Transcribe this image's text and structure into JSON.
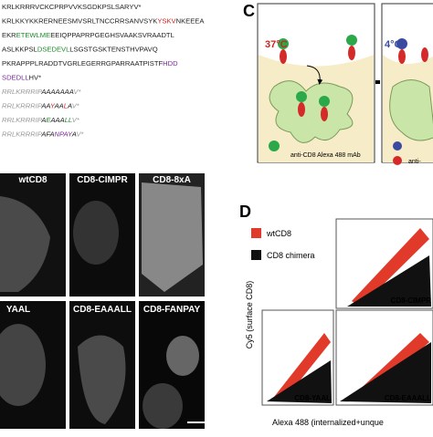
{
  "sequences": [
    [
      {
        "text": "KRLKRRRVCKCPRPVVKSGDKPSLSARYV*",
        "color": "#222"
      }
    ],
    [
      {
        "text": "KRLKKYKKRERNEESMVSRLTNCCRRSANVSYK",
        "color": "#222"
      },
      {
        "text": "YSKV",
        "color": "#d02020"
      },
      {
        "text": "NKEEEA",
        "color": "#222"
      }
    ],
    [
      {
        "text": "EKR",
        "color": "#222"
      },
      {
        "text": "ETEWLME",
        "color": "#1a8a2a"
      },
      {
        "text": "EEIQPPAPRPGEGHSVAAKSVRAADTL",
        "color": "#222"
      }
    ],
    [
      {
        "text": "ASLKKPSL",
        "color": "#222"
      },
      {
        "text": "DSEDEVL",
        "color": "#1a8a2a"
      },
      {
        "text": "LSGSTGSKTENSTHVPAVQ",
        "color": "#222"
      }
    ],
    [
      {
        "text": "PKRAPPPLRADDTVGRLEGERRGPARRAATPISTF",
        "color": "#222"
      },
      {
        "text": "HDD",
        "color": "#7a2a9a"
      }
    ],
    [
      {
        "text": "SDEDLL",
        "color": "#7a2a9a"
      },
      {
        "text": "HV*",
        "color": "#222"
      }
    ],
    [
      {
        "text": "RRLKRRRIP",
        "color": "#999"
      },
      {
        "text": "AAAAAAA",
        "color": "#222"
      },
      {
        "text": "V*",
        "color": "#999"
      }
    ],
    [
      {
        "text": "RRLKRRRIP",
        "color": "#999"
      },
      {
        "text": "AA",
        "color": "#222"
      },
      {
        "text": "Y",
        "color": "#d02020"
      },
      {
        "text": "AA",
        "color": "#222"
      },
      {
        "text": "L",
        "color": "#d02020"
      },
      {
        "text": "A",
        "color": "#222"
      },
      {
        "text": "V*",
        "color": "#999"
      }
    ],
    [
      {
        "text": "RRLKRRRIP",
        "color": "#999"
      },
      {
        "text": "A",
        "color": "#222"
      },
      {
        "text": "E",
        "color": "#1a8a2a"
      },
      {
        "text": "AAA",
        "color": "#222"
      },
      {
        "text": "LL",
        "color": "#1a8a2a"
      },
      {
        "text": "V*",
        "color": "#999"
      }
    ],
    [
      {
        "text": "RRLKRRRIP",
        "color": "#999"
      },
      {
        "text": "AFA",
        "color": "#222"
      },
      {
        "text": "NPAY",
        "color": "#7a2a9a"
      },
      {
        "text": "A",
        "color": "#222"
      },
      {
        "text": "V*",
        "color": "#999"
      }
    ]
  ],
  "micro_labels": [
    "wtCD8",
    "CD8-CIMPR",
    "CD8-8xA",
    "YAAL",
    "CD8-EAAALL",
    "CD8-FANPAY"
  ],
  "panel_c": {
    "letter": "C",
    "temp1": "37°C",
    "temp2": "4°C",
    "caption": "anti-CD8 Alexa 488 mAb",
    "caption2": "anti-"
  },
  "panel_d": {
    "letter": "D",
    "legend": [
      "wtCD8",
      "CD8 chimera"
    ],
    "ylabel": "Cy5 (surface CD8)",
    "xlabel": "Alexa 488 (internalized+unque",
    "plots": [
      "CD8-CIMPR",
      "CD8-YAAL",
      "CD8-EAAALL"
    ]
  }
}
